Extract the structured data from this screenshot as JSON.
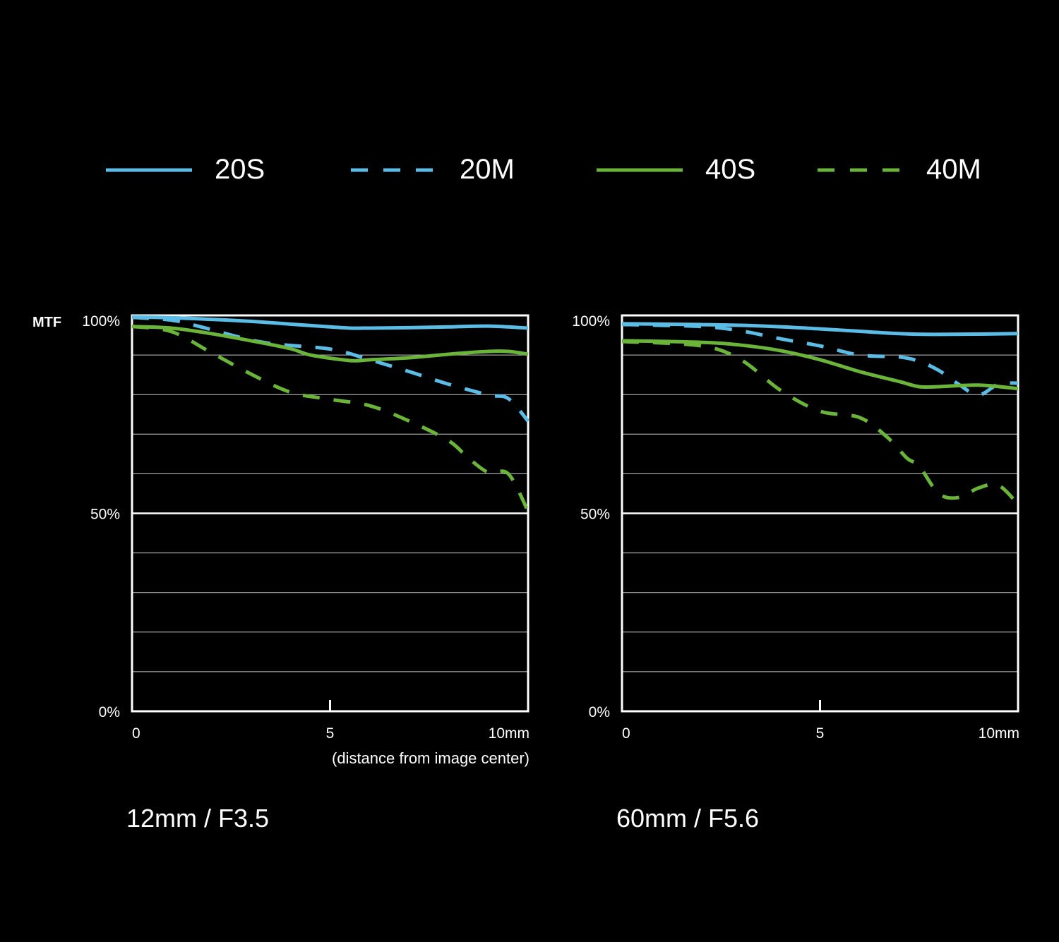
{
  "colors": {
    "blue": "#5bbde6",
    "green": "#6ab43a",
    "background": "#000000",
    "grid": "#ffffff"
  },
  "legend": [
    {
      "label": "20S",
      "color": "#5bbde6",
      "dashed": false
    },
    {
      "label": "20M",
      "color": "#5bbde6",
      "dashed": true
    },
    {
      "label": "40S",
      "color": "#6ab43a",
      "dashed": false
    },
    {
      "label": "40M",
      "color": "#6ab43a",
      "dashed": true
    }
  ],
  "chart_data": [
    {
      "type": "line",
      "title": "12mm / F3.5",
      "ylabel": "MTF",
      "xlabel": "(distance from image center)",
      "xlim": [
        0,
        10
      ],
      "ylim": [
        0,
        100
      ],
      "x_ticks": [
        "0",
        "5",
        "10mm"
      ],
      "y_ticks": [
        "0%",
        "50%",
        "100%"
      ],
      "grid": true,
      "series": [
        {
          "name": "20S",
          "x": [
            0,
            1,
            2,
            3,
            4,
            5,
            5.5,
            6,
            7,
            8,
            9,
            10
          ],
          "y": [
            99.6,
            99.4,
            99,
            98.5,
            97.8,
            97.1,
            96.8,
            96.8,
            96.9,
            97.1,
            97.3,
            96.8
          ]
        },
        {
          "name": "20M",
          "x": [
            0,
            1,
            1.7,
            3.3,
            5,
            6,
            7,
            8,
            9,
            9.5,
            10
          ],
          "y": [
            99.5,
            98.8,
            97.2,
            93.2,
            91.5,
            88.8,
            85.8,
            82.6,
            79.9,
            79,
            73.3
          ]
        },
        {
          "name": "40S",
          "x": [
            0,
            1,
            2,
            3,
            4,
            4.5,
            5.5,
            6,
            7,
            8,
            9,
            9.5,
            10
          ],
          "y": [
            97.2,
            96.8,
            95.4,
            93.6,
            91.6,
            90,
            88.6,
            88.8,
            89.3,
            90.2,
            90.9,
            90.9,
            90.2
          ]
        },
        {
          "name": "40M",
          "x": [
            0,
            1,
            2,
            3,
            4,
            5,
            6,
            7,
            8,
            8.5,
            9,
            9.5,
            10
          ],
          "y": [
            97.2,
            95.9,
            90.6,
            85.2,
            80.6,
            78.8,
            77.2,
            73.3,
            68.3,
            63.9,
            60.3,
            60,
            50.5
          ]
        }
      ]
    },
    {
      "type": "line",
      "title": "60mm / F5.6",
      "xlim": [
        0,
        10
      ],
      "ylim": [
        0,
        100
      ],
      "x_ticks": [
        "0",
        "5",
        "10mm"
      ],
      "y_ticks": [
        "0%",
        "50%",
        "100%"
      ],
      "grid": true,
      "series": [
        {
          "name": "20S",
          "x": [
            0,
            3,
            5,
            7,
            8,
            10
          ],
          "y": [
            97.9,
            97.5,
            96.6,
            95.4,
            95.2,
            95.4
          ]
        },
        {
          "name": "20M",
          "x": [
            0,
            2,
            3,
            4,
            5,
            6,
            7,
            7.5,
            8,
            8.5,
            9,
            9.5,
            10
          ],
          "y": [
            97.7,
            97.2,
            96.1,
            94.1,
            92.3,
            90,
            89.5,
            88.4,
            86.1,
            82.6,
            79.9,
            82.6,
            82.9
          ]
        },
        {
          "name": "40S",
          "x": [
            0,
            2,
            3,
            4,
            5,
            6,
            7,
            7.5,
            8,
            9,
            10
          ],
          "y": [
            93.6,
            93.2,
            92.5,
            91.1,
            88.8,
            85.8,
            83.3,
            82,
            82,
            82.4,
            81.5
          ]
        },
        {
          "name": "40M",
          "x": [
            0,
            2,
            3,
            4,
            5,
            6,
            6.7,
            7.2,
            7.5,
            8,
            8.5,
            9,
            9.5,
            10
          ],
          "y": [
            93.4,
            92.3,
            88.8,
            81.1,
            75.8,
            74.2,
            69.2,
            63.9,
            62,
            55,
            54,
            56.4,
            57.1,
            52.3
          ]
        }
      ]
    }
  ]
}
